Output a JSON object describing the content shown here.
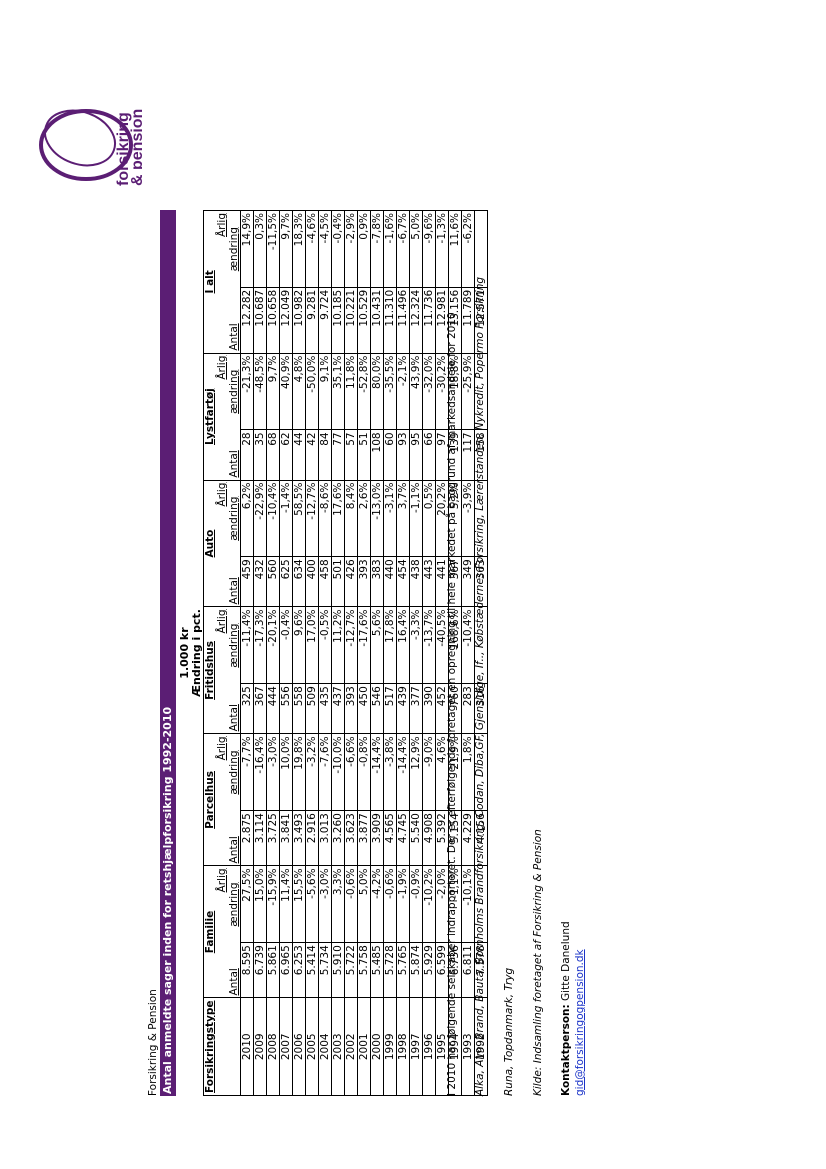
{
  "company": "Forsikring & Pension",
  "title": "Antal anmeldte sager inden for retshjælpforsikring 1992-2010",
  "unit_line1": "1.000 kr",
  "unit_line2": "Ændring i pct.",
  "logo_text_line1": "forsikring",
  "logo_text_line2": "& pension",
  "brand_color": "#5b1e74",
  "table": {
    "type_header": "Forsikringstype",
    "categories": [
      "Familie",
      "Parcelhus",
      "Fritidshus",
      "Auto",
      "Lystfartøj",
      "I alt"
    ],
    "sub_top": "Årlig",
    "sub_antal": "Antal",
    "sub_andring": "ændring",
    "rows": [
      [
        "2010",
        "8.595",
        "27,5%",
        "2.875",
        "-7,7%",
        "325",
        "-11,4%",
        "459",
        "6,2%",
        "28",
        "-21,3%",
        "12.282",
        "14,9%"
      ],
      [
        "2009",
        "6.739",
        "15,0%",
        "3.114",
        "-16,4%",
        "367",
        "-17,3%",
        "432",
        "-22,9%",
        "35",
        "-48,5%",
        "10.687",
        "0,3%"
      ],
      [
        "2008",
        "5.861",
        "-15,9%",
        "3.725",
        "-3,0%",
        "444",
        "-20,1%",
        "560",
        "-10,4%",
        "68",
        "9,7%",
        "10.658",
        "-11,5%"
      ],
      [
        "2007",
        "6.965",
        "11,4%",
        "3.841",
        "10,0%",
        "556",
        "-0,4%",
        "625",
        "-1,4%",
        "62",
        "40,9%",
        "12.049",
        "9,7%"
      ],
      [
        "2006",
        "6.253",
        "15,5%",
        "3.493",
        "19,8%",
        "558",
        "9,6%",
        "634",
        "58,5%",
        "44",
        "4,8%",
        "10.982",
        "18,3%"
      ],
      [
        "2005",
        "5.414",
        "-5,6%",
        "2.916",
        "-3,2%",
        "509",
        "17,0%",
        "400",
        "-12,7%",
        "42",
        "-50,0%",
        "9.281",
        "-4,6%"
      ],
      [
        "2004",
        "5.734",
        "-3,0%",
        "3.013",
        "-7,6%",
        "435",
        "-0,5%",
        "458",
        "-8,6%",
        "84",
        "9,1%",
        "9.724",
        "-4,5%"
      ],
      [
        "2003",
        "5.910",
        "3,3%",
        "3.260",
        "-10,0%",
        "437",
        "11,2%",
        "501",
        "17,6%",
        "77",
        "35,1%",
        "10.185",
        "-0,4%"
      ],
      [
        "2002",
        "5.722",
        "-0,6%",
        "3.623",
        "-6,6%",
        "393",
        "-12,7%",
        "426",
        "8,4%",
        "57",
        "11,8%",
        "10.221",
        "-2,9%"
      ],
      [
        "2001",
        "5.758",
        "5,0%",
        "3.877",
        "-0,8%",
        "450",
        "-17,6%",
        "393",
        "2,6%",
        "51",
        "-52,8%",
        "10.529",
        "0,9%"
      ],
      [
        "2000",
        "5.485",
        "-4,2%",
        "3.909",
        "-14,4%",
        "546",
        "5,6%",
        "383",
        "-13,0%",
        "108",
        "80,0%",
        "10.431",
        "-7,8%"
      ],
      [
        "1999",
        "5.728",
        "-0,6%",
        "4.565",
        "-3,8%",
        "517",
        "17,8%",
        "440",
        "-3,1%",
        "60",
        "-35,5%",
        "11.310",
        "-1,6%"
      ],
      [
        "1998",
        "5.765",
        "-1,9%",
        "4.745",
        "-14,4%",
        "439",
        "16,4%",
        "454",
        "3,7%",
        "93",
        "-2,1%",
        "11.496",
        "-6,7%"
      ],
      [
        "1997",
        "5.874",
        "-0,9%",
        "5.540",
        "12,9%",
        "377",
        "-3,3%",
        "438",
        "-1,1%",
        "95",
        "43,9%",
        "12.324",
        "5,0%"
      ],
      [
        "1996",
        "5.929",
        "-10,2%",
        "4.908",
        "-9,0%",
        "390",
        "-13,7%",
        "443",
        "0,5%",
        "66",
        "-32,0%",
        "11.736",
        "-9,6%"
      ],
      [
        "1995",
        "6.599",
        "-2,0%",
        "5.392",
        "4,6%",
        "452",
        "-40,5%",
        "441",
        "20,2%",
        "97",
        "-30,2%",
        "12.981",
        "-1,3%"
      ],
      [
        "1994",
        "6.736",
        "-1,1%",
        "5.154",
        "21,9%",
        "760",
        "168,6%",
        "367",
        "5,2%",
        "139",
        "18,8%",
        "13.156",
        "11,6%"
      ],
      [
        "1993",
        "6.811",
        "-10,1%",
        "4.229",
        "1,8%",
        "283",
        "-10,4%",
        "349",
        "-3,9%",
        "117",
        "-25,9%",
        "11.789",
        "-6,2%"
      ],
      [
        "1992",
        "7.578",
        "",
        "4.156",
        "",
        "316",
        "",
        "363",
        "",
        "158",
        "",
        "12.571",
        ""
      ]
    ]
  },
  "footnote": "I 2010 har følgende selskaber indrapporteret. Der er efterfølgende foretaget en opregning til hele markedet på baggrund af markedsandele for 2010",
  "companies_line1": "Alka, Alm. Brand, Bauta, Bornholms Brandforsikring, Codan, Diba,GF, Gjensidige, If.., Købstædernes Forsikring, Lærerstanden, Nykredit, Popermo Forsikring",
  "companies_line2": "Runa, Topdanmark, Tryg",
  "source": "Kilde: Indsamling foretaget af Forsikring & Pension",
  "contact_label": "Kontaktperson:",
  "contact_name": " Gitte Danelund",
  "contact_email": "gid@forsikringogpension.dk"
}
